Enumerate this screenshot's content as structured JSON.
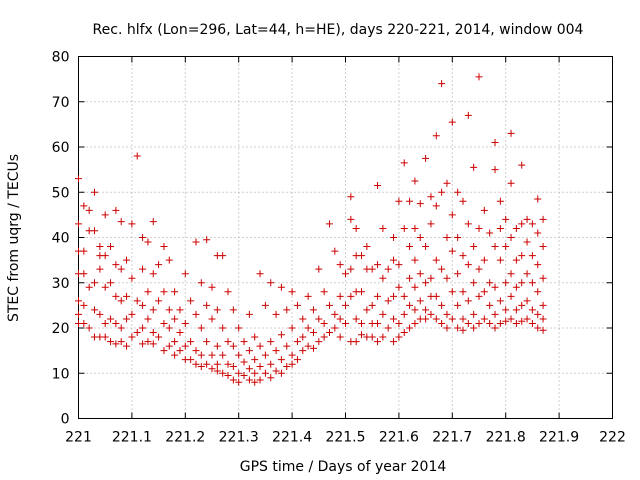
{
  "chart_data": {
    "type": "scatter",
    "title": "Rec. hlfx (Lon=296, Lat=44, h=HE), days 220-221, 2014, window 004",
    "xlabel": "GPS time / Days of year 2014",
    "ylabel": "STEC from uqrg / TECUs",
    "xlim": [
      221,
      222
    ],
    "ylim": [
      0,
      80
    ],
    "grid": true,
    "marker": "plus",
    "color": "#cc0000",
    "x_ticks": [
      221,
      221.1,
      221.2,
      221.3,
      221.4,
      221.5,
      221.6,
      221.7,
      221.8,
      221.9,
      222
    ],
    "x_tick_labels": [
      "221",
      "221.1",
      "221.2",
      "221.3",
      "221.4",
      "221.5",
      "221.6",
      "221.7",
      "221.8",
      "221.9",
      "222"
    ],
    "y_ticks": [
      0,
      10,
      20,
      30,
      40,
      50,
      60,
      70,
      80
    ],
    "y_tick_labels": [
      "0",
      "10",
      "20",
      "30",
      "40",
      "50",
      "60",
      "70",
      "80"
    ],
    "points": [
      [
        221.0,
        53.0
      ],
      [
        221.0,
        43.0
      ],
      [
        221.0,
        37.0
      ],
      [
        221.0,
        32.0
      ],
      [
        221.0,
        26.0
      ],
      [
        221.0,
        23.0
      ],
      [
        221.0,
        21.0
      ],
      [
        221.01,
        47.0
      ],
      [
        221.01,
        37.0
      ],
      [
        221.01,
        32.0
      ],
      [
        221.01,
        25.0
      ],
      [
        221.01,
        21.0
      ],
      [
        221.02,
        46.0
      ],
      [
        221.02,
        41.5
      ],
      [
        221.02,
        29.0
      ],
      [
        221.02,
        20.0
      ],
      [
        221.03,
        50.0
      ],
      [
        221.03,
        41.5
      ],
      [
        221.03,
        30.0
      ],
      [
        221.03,
        24.0
      ],
      [
        221.03,
        18.0
      ],
      [
        221.04,
        38.0
      ],
      [
        221.04,
        36.0
      ],
      [
        221.04,
        33.0
      ],
      [
        221.04,
        23.0
      ],
      [
        221.04,
        18.0
      ],
      [
        221.05,
        45.0
      ],
      [
        221.05,
        36.0
      ],
      [
        221.05,
        29.0
      ],
      [
        221.05,
        21.0
      ],
      [
        221.05,
        18.0
      ],
      [
        221.06,
        38.0
      ],
      [
        221.06,
        30.0
      ],
      [
        221.06,
        22.0
      ],
      [
        221.06,
        17.0
      ],
      [
        221.07,
        46.0
      ],
      [
        221.07,
        34.0
      ],
      [
        221.07,
        27.0
      ],
      [
        221.07,
        21.0
      ],
      [
        221.07,
        16.5
      ],
      [
        221.08,
        43.5
      ],
      [
        221.08,
        33.0
      ],
      [
        221.08,
        26.0
      ],
      [
        221.08,
        20.0
      ],
      [
        221.08,
        17.0
      ],
      [
        221.09,
        35.0
      ],
      [
        221.09,
        27.0
      ],
      [
        221.09,
        22.0
      ],
      [
        221.09,
        16.0
      ],
      [
        221.1,
        43.0
      ],
      [
        221.1,
        31.0
      ],
      [
        221.1,
        23.0
      ],
      [
        221.1,
        18.0
      ],
      [
        221.11,
        58.0
      ],
      [
        221.11,
        26.0
      ],
      [
        221.11,
        19.0
      ],
      [
        221.12,
        40.0
      ],
      [
        221.12,
        33.0
      ],
      [
        221.12,
        25.0
      ],
      [
        221.12,
        20.0
      ],
      [
        221.12,
        16.5
      ],
      [
        221.13,
        39.0
      ],
      [
        221.13,
        28.0
      ],
      [
        221.13,
        22.0
      ],
      [
        221.13,
        17.0
      ],
      [
        221.14,
        43.5
      ],
      [
        221.14,
        32.0
      ],
      [
        221.14,
        24.0
      ],
      [
        221.14,
        19.0
      ],
      [
        221.14,
        16.5
      ],
      [
        221.15,
        34.0
      ],
      [
        221.15,
        26.0
      ],
      [
        221.15,
        18.0
      ],
      [
        221.16,
        38.0
      ],
      [
        221.16,
        28.0
      ],
      [
        221.16,
        21.0
      ],
      [
        221.16,
        15.0
      ],
      [
        221.17,
        35.0
      ],
      [
        221.17,
        24.0
      ],
      [
        221.17,
        20.0
      ],
      [
        221.17,
        16.0
      ],
      [
        221.18,
        28.0
      ],
      [
        221.18,
        22.0
      ],
      [
        221.18,
        17.0
      ],
      [
        221.18,
        14.0
      ],
      [
        221.19,
        24.0
      ],
      [
        221.19,
        19.0
      ],
      [
        221.19,
        15.0
      ],
      [
        221.2,
        32.0
      ],
      [
        221.2,
        21.0
      ],
      [
        221.2,
        16.0
      ],
      [
        221.2,
        13.0
      ],
      [
        221.21,
        26.0
      ],
      [
        221.21,
        17.0
      ],
      [
        221.21,
        13.0
      ],
      [
        221.22,
        39.0
      ],
      [
        221.22,
        23.0
      ],
      [
        221.22,
        15.0
      ],
      [
        221.22,
        12.0
      ],
      [
        221.23,
        30.0
      ],
      [
        221.23,
        20.0
      ],
      [
        221.23,
        14.0
      ],
      [
        221.23,
        11.5
      ],
      [
        221.24,
        39.5
      ],
      [
        221.24,
        25.0
      ],
      [
        221.24,
        17.0
      ],
      [
        221.24,
        12.0
      ],
      [
        221.25,
        29.0
      ],
      [
        221.25,
        22.0
      ],
      [
        221.25,
        14.0
      ],
      [
        221.25,
        11.0
      ],
      [
        221.26,
        36.0
      ],
      [
        221.26,
        24.0
      ],
      [
        221.26,
        16.0
      ],
      [
        221.26,
        12.0
      ],
      [
        221.26,
        10.5
      ],
      [
        221.27,
        36.0
      ],
      [
        221.27,
        20.0
      ],
      [
        221.27,
        14.0
      ],
      [
        221.27,
        10.0
      ],
      [
        221.28,
        28.0
      ],
      [
        221.28,
        17.0
      ],
      [
        221.28,
        12.0
      ],
      [
        221.28,
        9.5
      ],
      [
        221.29,
        24.0
      ],
      [
        221.29,
        16.0
      ],
      [
        221.29,
        11.5
      ],
      [
        221.29,
        8.5
      ],
      [
        221.3,
        20.0
      ],
      [
        221.3,
        14.0
      ],
      [
        221.3,
        10.0
      ],
      [
        221.3,
        8.0
      ],
      [
        221.31,
        17.0
      ],
      [
        221.31,
        12.5
      ],
      [
        221.31,
        9.5
      ],
      [
        221.32,
        23.0
      ],
      [
        221.32,
        15.0
      ],
      [
        221.32,
        11.0
      ],
      [
        221.32,
        8.5
      ],
      [
        221.33,
        18.0
      ],
      [
        221.33,
        13.0
      ],
      [
        221.33,
        10.0
      ],
      [
        221.33,
        8.0
      ],
      [
        221.34,
        32.0
      ],
      [
        221.34,
        16.0
      ],
      [
        221.34,
        11.5
      ],
      [
        221.34,
        8.5
      ],
      [
        221.35,
        25.0
      ],
      [
        221.35,
        14.0
      ],
      [
        221.35,
        10.0
      ],
      [
        221.36,
        30.0
      ],
      [
        221.36,
        17.0
      ],
      [
        221.36,
        12.0
      ],
      [
        221.36,
        9.0
      ],
      [
        221.37,
        23.0
      ],
      [
        221.37,
        15.0
      ],
      [
        221.37,
        10.5
      ],
      [
        221.38,
        29.0
      ],
      [
        221.38,
        18.5
      ],
      [
        221.38,
        13.0
      ],
      [
        221.38,
        10.0
      ],
      [
        221.39,
        24.0
      ],
      [
        221.39,
        16.0
      ],
      [
        221.39,
        11.5
      ],
      [
        221.4,
        28.0
      ],
      [
        221.4,
        20.0
      ],
      [
        221.4,
        14.0
      ],
      [
        221.4,
        12.0
      ],
      [
        221.41,
        25.0
      ],
      [
        221.41,
        17.0
      ],
      [
        221.41,
        13.0
      ],
      [
        221.42,
        22.0
      ],
      [
        221.42,
        18.0
      ],
      [
        221.42,
        15.0
      ],
      [
        221.43,
        27.0
      ],
      [
        221.43,
        20.0
      ],
      [
        221.43,
        16.0
      ],
      [
        221.44,
        24.0
      ],
      [
        221.44,
        19.0
      ],
      [
        221.44,
        15.5
      ],
      [
        221.45,
        33.0
      ],
      [
        221.45,
        22.0
      ],
      [
        221.45,
        17.0
      ],
      [
        221.46,
        28.0
      ],
      [
        221.46,
        21.0
      ],
      [
        221.46,
        18.0
      ],
      [
        221.47,
        43.0
      ],
      [
        221.47,
        25.0
      ],
      [
        221.47,
        19.0
      ],
      [
        221.48,
        37.0
      ],
      [
        221.48,
        23.0
      ],
      [
        221.48,
        20.0
      ],
      [
        221.49,
        34.0
      ],
      [
        221.49,
        27.0
      ],
      [
        221.49,
        22.0
      ],
      [
        221.49,
        18.0
      ],
      [
        221.5,
        32.0
      ],
      [
        221.5,
        25.0
      ],
      [
        221.5,
        21.0
      ],
      [
        221.51,
        49.0
      ],
      [
        221.51,
        44.0
      ],
      [
        221.51,
        33.0
      ],
      [
        221.51,
        27.0
      ],
      [
        221.51,
        17.0
      ],
      [
        221.52,
        42.0
      ],
      [
        221.52,
        36.0
      ],
      [
        221.52,
        28.0
      ],
      [
        221.52,
        22.0
      ],
      [
        221.52,
        17.0
      ],
      [
        221.53,
        36.0
      ],
      [
        221.53,
        28.0
      ],
      [
        221.53,
        21.0
      ],
      [
        221.53,
        18.5
      ],
      [
        221.54,
        38.0
      ],
      [
        221.54,
        33.0
      ],
      [
        221.54,
        24.0
      ],
      [
        221.54,
        18.0
      ],
      [
        221.55,
        33.0
      ],
      [
        221.55,
        25.0
      ],
      [
        221.55,
        21.0
      ],
      [
        221.55,
        18.0
      ],
      [
        221.56,
        51.5
      ],
      [
        221.56,
        34.0
      ],
      [
        221.56,
        27.0
      ],
      [
        221.56,
        21.0
      ],
      [
        221.56,
        17.0
      ],
      [
        221.57,
        42.0
      ],
      [
        221.57,
        31.0
      ],
      [
        221.57,
        23.0
      ],
      [
        221.57,
        18.0
      ],
      [
        221.58,
        33.0
      ],
      [
        221.58,
        26.0
      ],
      [
        221.58,
        20.0
      ],
      [
        221.59,
        40.0
      ],
      [
        221.59,
        35.0
      ],
      [
        221.59,
        27.0
      ],
      [
        221.59,
        22.0
      ],
      [
        221.59,
        17.0
      ],
      [
        221.6,
        48.0
      ],
      [
        221.6,
        34.0
      ],
      [
        221.6,
        29.0
      ],
      [
        221.6,
        21.0
      ],
      [
        221.6,
        18.0
      ],
      [
        221.61,
        56.5
      ],
      [
        221.61,
        42.0
      ],
      [
        221.61,
        27.0
      ],
      [
        221.61,
        23.0
      ],
      [
        221.61,
        19.0
      ],
      [
        221.62,
        48.0
      ],
      [
        221.62,
        38.0
      ],
      [
        221.62,
        31.0
      ],
      [
        221.62,
        25.0
      ],
      [
        221.62,
        20.0
      ],
      [
        221.63,
        52.5
      ],
      [
        221.63,
        42.0
      ],
      [
        221.63,
        35.0
      ],
      [
        221.63,
        29.0
      ],
      [
        221.63,
        24.0
      ],
      [
        221.63,
        21.0
      ],
      [
        221.64,
        47.5
      ],
      [
        221.64,
        40.0
      ],
      [
        221.64,
        32.0
      ],
      [
        221.64,
        26.0
      ],
      [
        221.64,
        22.0
      ],
      [
        221.65,
        57.5
      ],
      [
        221.65,
        38.0
      ],
      [
        221.65,
        30.0
      ],
      [
        221.65,
        24.0
      ],
      [
        221.65,
        22.0
      ],
      [
        221.66,
        49.0
      ],
      [
        221.66,
        43.0
      ],
      [
        221.66,
        31.0
      ],
      [
        221.66,
        27.0
      ],
      [
        221.66,
        23.0
      ],
      [
        221.67,
        62.5
      ],
      [
        221.67,
        47.0
      ],
      [
        221.67,
        35.0
      ],
      [
        221.67,
        27.0
      ],
      [
        221.67,
        22.0
      ],
      [
        221.68,
        74.0
      ],
      [
        221.68,
        50.0
      ],
      [
        221.68,
        33.0
      ],
      [
        221.68,
        25.0
      ],
      [
        221.68,
        21.0
      ],
      [
        221.69,
        52.0
      ],
      [
        221.69,
        40.0
      ],
      [
        221.69,
        31.0
      ],
      [
        221.69,
        23.0
      ],
      [
        221.69,
        20.0
      ],
      [
        221.7,
        65.5
      ],
      [
        221.7,
        45.0
      ],
      [
        221.7,
        37.0
      ],
      [
        221.7,
        28.0
      ],
      [
        221.7,
        22.0
      ],
      [
        221.71,
        50.0
      ],
      [
        221.71,
        40.0
      ],
      [
        221.71,
        32.0
      ],
      [
        221.71,
        25.0
      ],
      [
        221.71,
        20.0
      ],
      [
        221.72,
        48.0
      ],
      [
        221.72,
        36.0
      ],
      [
        221.72,
        28.0
      ],
      [
        221.72,
        22.0
      ],
      [
        221.72,
        19.5
      ],
      [
        221.73,
        67.0
      ],
      [
        221.73,
        43.0
      ],
      [
        221.73,
        34.0
      ],
      [
        221.73,
        26.0
      ],
      [
        221.73,
        21.0
      ],
      [
        221.74,
        55.5
      ],
      [
        221.74,
        38.0
      ],
      [
        221.74,
        30.0
      ],
      [
        221.74,
        23.0
      ],
      [
        221.74,
        20.0
      ],
      [
        221.75,
        75.5
      ],
      [
        221.75,
        42.0
      ],
      [
        221.75,
        33.0
      ],
      [
        221.75,
        27.0
      ],
      [
        221.75,
        21.0
      ],
      [
        221.76,
        46.0
      ],
      [
        221.76,
        35.0
      ],
      [
        221.76,
        28.0
      ],
      [
        221.76,
        22.0
      ],
      [
        221.77,
        41.0
      ],
      [
        221.77,
        30.0
      ],
      [
        221.77,
        25.0
      ],
      [
        221.77,
        21.0
      ],
      [
        221.78,
        61.0
      ],
      [
        221.78,
        55.0
      ],
      [
        221.78,
        38.0
      ],
      [
        221.78,
        29.0
      ],
      [
        221.78,
        23.0
      ],
      [
        221.78,
        20.0
      ],
      [
        221.79,
        48.0
      ],
      [
        221.79,
        42.0
      ],
      [
        221.79,
        35.0
      ],
      [
        221.79,
        26.0
      ],
      [
        221.79,
        21.0
      ],
      [
        221.8,
        44.0
      ],
      [
        221.8,
        38.0
      ],
      [
        221.8,
        30.0
      ],
      [
        221.8,
        24.0
      ],
      [
        221.8,
        21.5
      ],
      [
        221.81,
        63.0
      ],
      [
        221.81,
        52.0
      ],
      [
        221.81,
        40.0
      ],
      [
        221.81,
        32.0
      ],
      [
        221.81,
        27.0
      ],
      [
        221.81,
        22.0
      ],
      [
        221.82,
        42.0
      ],
      [
        221.82,
        35.0
      ],
      [
        221.82,
        29.0
      ],
      [
        221.82,
        24.0
      ],
      [
        221.82,
        21.0
      ],
      [
        221.83,
        56.0
      ],
      [
        221.83,
        43.0
      ],
      [
        221.83,
        36.0
      ],
      [
        221.83,
        30.0
      ],
      [
        221.83,
        25.0
      ],
      [
        221.83,
        21.5
      ],
      [
        221.84,
        44.0
      ],
      [
        221.84,
        39.0
      ],
      [
        221.84,
        32.0
      ],
      [
        221.84,
        26.0
      ],
      [
        221.84,
        22.0
      ],
      [
        221.85,
        43.0
      ],
      [
        221.85,
        36.0
      ],
      [
        221.85,
        30.0
      ],
      [
        221.85,
        24.0
      ],
      [
        221.85,
        21.0
      ],
      [
        221.86,
        48.5
      ],
      [
        221.86,
        41.0
      ],
      [
        221.86,
        34.0
      ],
      [
        221.86,
        28.0
      ],
      [
        221.86,
        23.0
      ],
      [
        221.86,
        20.0
      ],
      [
        221.87,
        44.0
      ],
      [
        221.87,
        38.0
      ],
      [
        221.87,
        31.0
      ],
      [
        221.87,
        25.0
      ],
      [
        221.87,
        22.0
      ],
      [
        221.87,
        19.5
      ]
    ]
  }
}
